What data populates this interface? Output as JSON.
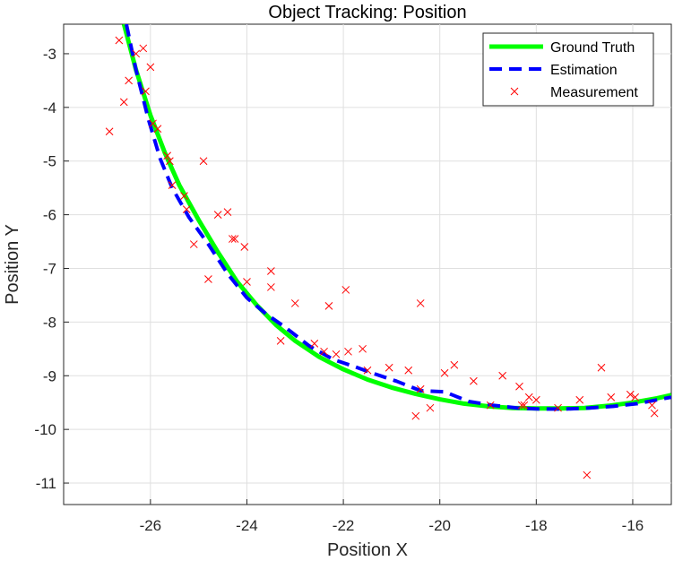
{
  "chart_data": {
    "type": "line",
    "title": "Object Tracking: Position",
    "xlabel": "Position X",
    "ylabel": "Position Y",
    "xlim": [
      -27.8,
      -15.2
    ],
    "ylim": [
      -11.4,
      -2.45
    ],
    "xticks": [
      -26,
      -24,
      -22,
      -20,
      -18,
      -16
    ],
    "yticks": [
      -3,
      -4,
      -5,
      -6,
      -7,
      -8,
      -9,
      -10,
      -11
    ],
    "grid": true,
    "legend_position": "top-right",
    "series": [
      {
        "name": "Ground Truth",
        "style": "solid",
        "color": "#00ff00",
        "x": [
          -26.55,
          -26.3,
          -26.0,
          -25.7,
          -25.4,
          -25.0,
          -24.6,
          -24.2,
          -23.8,
          -23.4,
          -23.0,
          -22.5,
          -22.0,
          -21.5,
          -21.0,
          -20.5,
          -20.0,
          -19.5,
          -19.0,
          -18.5,
          -18.0,
          -17.5,
          -17.0,
          -16.5,
          -16.0,
          -15.5,
          -15.2
        ],
        "y": [
          -2.45,
          -3.3,
          -4.15,
          -4.85,
          -5.45,
          -6.1,
          -6.7,
          -7.25,
          -7.68,
          -8.05,
          -8.35,
          -8.65,
          -8.88,
          -9.07,
          -9.22,
          -9.34,
          -9.44,
          -9.52,
          -9.57,
          -9.6,
          -9.61,
          -9.61,
          -9.6,
          -9.56,
          -9.5,
          -9.42,
          -9.36
        ]
      },
      {
        "name": "Estimation",
        "style": "dashed",
        "color": "#0000ff",
        "x": [
          -26.5,
          -26.3,
          -26.05,
          -25.8,
          -25.55,
          -25.2,
          -24.8,
          -24.4,
          -24.0,
          -23.6,
          -23.2,
          -22.7,
          -22.2,
          -21.8,
          -21.4,
          -20.9,
          -20.4,
          -19.9,
          -19.4,
          -18.9,
          -18.4,
          -17.9,
          -17.4,
          -16.9,
          -16.4,
          -15.9,
          -15.5,
          -15.2
        ],
        "y": [
          -2.45,
          -3.3,
          -4.2,
          -4.95,
          -5.5,
          -6.05,
          -6.55,
          -7.1,
          -7.55,
          -7.85,
          -8.1,
          -8.45,
          -8.7,
          -8.82,
          -8.95,
          -9.1,
          -9.28,
          -9.3,
          -9.48,
          -9.55,
          -9.6,
          -9.62,
          -9.62,
          -9.6,
          -9.57,
          -9.52,
          -9.45,
          -9.4
        ]
      },
      {
        "name": "Measurement",
        "style": "marker-x",
        "color": "#ff0000",
        "x": [
          -26.85,
          -26.65,
          -26.55,
          -26.45,
          -26.3,
          -26.15,
          -26.1,
          -26.0,
          -25.95,
          -25.85,
          -25.65,
          -25.6,
          -25.55,
          -25.3,
          -25.25,
          -25.1,
          -24.9,
          -24.8,
          -24.6,
          -24.4,
          -24.3,
          -24.25,
          -24.05,
          -24.0,
          -23.5,
          -23.5,
          -23.3,
          -23.0,
          -22.6,
          -22.4,
          -22.3,
          -22.15,
          -21.95,
          -21.9,
          -21.6,
          -21.5,
          -21.05,
          -20.65,
          -20.5,
          -20.4,
          -20.4,
          -20.2,
          -19.9,
          -19.7,
          -19.3,
          -18.95,
          -18.7,
          -18.35,
          -18.3,
          -18.25,
          -18.15,
          -18.0,
          -17.55,
          -17.1,
          -16.95,
          -16.65,
          -16.45,
          -16.05,
          -15.95,
          -15.6,
          -15.55
        ],
        "y": [
          -4.45,
          -2.75,
          -3.9,
          -3.5,
          -3.0,
          -2.9,
          -3.7,
          -3.25,
          -4.3,
          -4.4,
          -4.9,
          -5.0,
          -5.45,
          -5.65,
          -5.9,
          -6.55,
          -5.0,
          -7.2,
          -6.0,
          -5.95,
          -6.45,
          -6.45,
          -6.6,
          -7.25,
          -7.35,
          -7.05,
          -8.35,
          -7.65,
          -8.4,
          -8.55,
          -7.7,
          -8.6,
          -7.4,
          -8.55,
          -8.5,
          -8.9,
          -8.85,
          -8.9,
          -9.75,
          -7.65,
          -9.25,
          -9.6,
          -8.95,
          -8.8,
          -9.1,
          -9.55,
          -9.0,
          -9.2,
          -9.55,
          -9.55,
          -9.4,
          -9.45,
          -9.6,
          -9.45,
          -10.85,
          -8.85,
          -9.4,
          -9.35,
          -9.4,
          -9.55,
          -9.7
        ]
      }
    ]
  }
}
